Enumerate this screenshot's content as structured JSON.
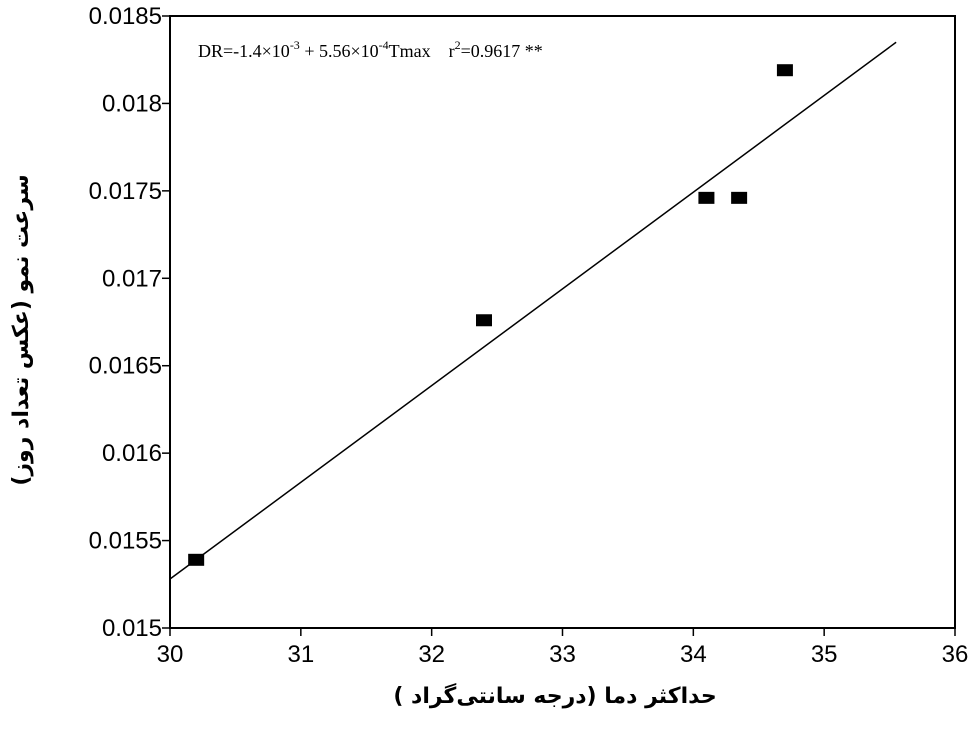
{
  "chart_data": {
    "type": "scatter",
    "title": "",
    "xlabel": "حداکثر دما (درجه سانتی‌گراد )",
    "ylabel": "سرعت نمو (عکس تعداد روز)",
    "xlim": [
      30,
      36
    ],
    "ylim": [
      0.015,
      0.0185
    ],
    "x_ticks": [
      30,
      31,
      32,
      33,
      34,
      35,
      36
    ],
    "x_tick_labels": [
      "30",
      "31",
      "32",
      "33",
      "34",
      "35",
      "36"
    ],
    "y_ticks": [
      0.015,
      0.0155,
      0.016,
      0.0165,
      0.017,
      0.0175,
      0.018,
      0.0185
    ],
    "y_tick_labels": [
      "0.015",
      "0.0155",
      "0.016",
      "0.0165",
      "0.017",
      "0.0175",
      "0.018",
      "0.0185"
    ],
    "points": [
      {
        "x": 30.2,
        "y": 0.01539
      },
      {
        "x": 32.4,
        "y": 0.01676
      },
      {
        "x": 34.1,
        "y": 0.01746
      },
      {
        "x": 34.35,
        "y": 0.01746
      },
      {
        "x": 34.7,
        "y": 0.01819
      }
    ],
    "fit_line": {
      "x": [
        30,
        35.55
      ],
      "y": [
        0.01528,
        0.01835
      ]
    },
    "annotation": {
      "equation_prefix": "DR=-1.4×10",
      "exp1": "-3",
      "equation_mid": " + 5.56×10",
      "exp2": "-4",
      "equation_suffix": "Tmax",
      "r_label": "r",
      "r_exp": "2",
      "r_value": "=0.9617 **"
    },
    "grid": false,
    "legend": "none"
  }
}
